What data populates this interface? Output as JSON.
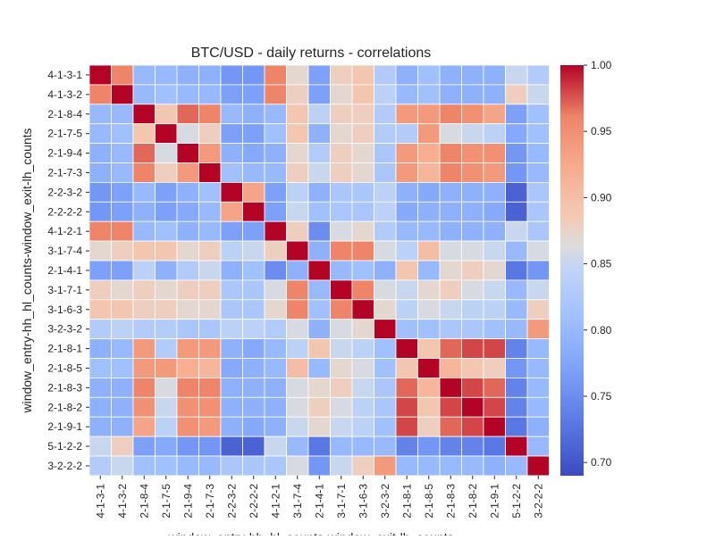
{
  "chart_data": {
    "type": "heatmap",
    "title": "BTC/USD - daily returns - correlations",
    "xlabel": "window_entry-hh_hl_counts-window_exit-lh_counts",
    "ylabel": "window_entry-hh_hl_counts-window_exit-lh_counts",
    "labels": [
      "4-1-3-1",
      "4-1-3-2",
      "2-1-8-4",
      "2-1-7-5",
      "2-1-9-4",
      "2-1-7-3",
      "2-2-3-2",
      "2-2-2-2",
      "4-1-2-1",
      "3-1-7-4",
      "2-1-4-1",
      "3-1-7-1",
      "3-1-6-3",
      "3-2-3-2",
      "2-1-8-1",
      "2-1-8-5",
      "2-1-8-3",
      "2-1-8-2",
      "2-1-9-1",
      "5-1-2-2",
      "3-2-2-2"
    ],
    "vmin": 0.69,
    "vmax": 1.0,
    "colormap": "coolwarm",
    "colorbar_ticks": [
      "0.70",
      "0.75",
      "0.80",
      "0.85",
      "0.90",
      "0.95",
      "1.00"
    ],
    "grid": "white cell borders",
    "matrix": [
      [
        1.0,
        0.96,
        0.8,
        0.8,
        0.79,
        0.79,
        0.76,
        0.76,
        0.96,
        0.87,
        0.77,
        0.88,
        0.89,
        0.83,
        0.79,
        0.81,
        0.79,
        0.79,
        0.79,
        0.85,
        0.83
      ],
      [
        0.96,
        1.0,
        0.8,
        0.81,
        0.8,
        0.8,
        0.77,
        0.77,
        0.96,
        0.88,
        0.77,
        0.87,
        0.89,
        0.84,
        0.8,
        0.81,
        0.79,
        0.79,
        0.79,
        0.88,
        0.85
      ],
      [
        0.8,
        0.8,
        1.0,
        0.89,
        0.97,
        0.96,
        0.8,
        0.79,
        0.8,
        0.89,
        0.84,
        0.88,
        0.88,
        0.83,
        0.94,
        0.94,
        0.96,
        0.95,
        0.93,
        0.77,
        0.81
      ],
      [
        0.8,
        0.81,
        0.89,
        1.0,
        0.86,
        0.88,
        0.77,
        0.77,
        0.81,
        0.89,
        0.79,
        0.87,
        0.88,
        0.83,
        0.83,
        0.94,
        0.86,
        0.85,
        0.84,
        0.78,
        0.81
      ],
      [
        0.79,
        0.8,
        0.97,
        0.86,
        1.0,
        0.94,
        0.79,
        0.78,
        0.79,
        0.87,
        0.83,
        0.88,
        0.87,
        0.82,
        0.94,
        0.92,
        0.96,
        0.95,
        0.95,
        0.76,
        0.8
      ],
      [
        0.79,
        0.8,
        0.96,
        0.88,
        0.94,
        1.0,
        0.81,
        0.8,
        0.8,
        0.88,
        0.85,
        0.88,
        0.87,
        0.82,
        0.94,
        0.91,
        0.96,
        0.95,
        0.94,
        0.76,
        0.8
      ],
      [
        0.76,
        0.77,
        0.8,
        0.77,
        0.79,
        0.81,
        1.0,
        0.93,
        0.77,
        0.84,
        0.79,
        0.82,
        0.82,
        0.84,
        0.79,
        0.78,
        0.79,
        0.79,
        0.79,
        0.71,
        0.82
      ],
      [
        0.76,
        0.77,
        0.79,
        0.77,
        0.78,
        0.8,
        0.93,
        1.0,
        0.77,
        0.85,
        0.81,
        0.82,
        0.82,
        0.84,
        0.78,
        0.79,
        0.79,
        0.79,
        0.78,
        0.71,
        0.82
      ],
      [
        0.96,
        0.96,
        0.8,
        0.81,
        0.79,
        0.8,
        0.77,
        0.77,
        1.0,
        0.88,
        0.75,
        0.86,
        0.87,
        0.83,
        0.8,
        0.8,
        0.79,
        0.79,
        0.79,
        0.85,
        0.82
      ],
      [
        0.87,
        0.88,
        0.89,
        0.89,
        0.87,
        0.88,
        0.84,
        0.85,
        0.88,
        1.0,
        0.79,
        0.96,
        0.96,
        0.86,
        0.84,
        0.9,
        0.86,
        0.86,
        0.85,
        0.8,
        0.86
      ],
      [
        0.77,
        0.77,
        0.84,
        0.79,
        0.83,
        0.85,
        0.79,
        0.81,
        0.75,
        0.79,
        1.0,
        0.8,
        0.81,
        0.79,
        0.89,
        0.8,
        0.87,
        0.88,
        0.87,
        0.73,
        0.76
      ],
      [
        0.88,
        0.87,
        0.88,
        0.87,
        0.88,
        0.88,
        0.82,
        0.82,
        0.86,
        0.96,
        0.8,
        1.0,
        0.96,
        0.86,
        0.85,
        0.87,
        0.88,
        0.86,
        0.85,
        0.8,
        0.85
      ],
      [
        0.89,
        0.89,
        0.88,
        0.88,
        0.87,
        0.87,
        0.82,
        0.82,
        0.87,
        0.96,
        0.81,
        0.96,
        1.0,
        0.87,
        0.84,
        0.86,
        0.85,
        0.84,
        0.84,
        0.8,
        0.88
      ],
      [
        0.83,
        0.84,
        0.83,
        0.83,
        0.82,
        0.82,
        0.84,
        0.84,
        0.83,
        0.86,
        0.79,
        0.86,
        0.87,
        1.0,
        0.81,
        0.81,
        0.82,
        0.82,
        0.81,
        0.8,
        0.94
      ],
      [
        0.79,
        0.8,
        0.94,
        0.83,
        0.94,
        0.94,
        0.79,
        0.78,
        0.8,
        0.84,
        0.89,
        0.85,
        0.84,
        0.81,
        1.0,
        0.89,
        0.97,
        0.98,
        0.98,
        0.74,
        0.8
      ],
      [
        0.81,
        0.81,
        0.94,
        0.94,
        0.92,
        0.91,
        0.78,
        0.79,
        0.8,
        0.9,
        0.8,
        0.87,
        0.86,
        0.81,
        0.89,
        1.0,
        0.91,
        0.89,
        0.88,
        0.76,
        0.8
      ],
      [
        0.79,
        0.79,
        0.96,
        0.86,
        0.96,
        0.96,
        0.79,
        0.79,
        0.79,
        0.86,
        0.87,
        0.88,
        0.85,
        0.82,
        0.97,
        0.91,
        1.0,
        0.98,
        0.97,
        0.74,
        0.8
      ],
      [
        0.79,
        0.79,
        0.95,
        0.85,
        0.95,
        0.95,
        0.79,
        0.79,
        0.79,
        0.86,
        0.88,
        0.86,
        0.84,
        0.82,
        0.98,
        0.89,
        0.98,
        1.0,
        0.98,
        0.74,
        0.8
      ],
      [
        0.79,
        0.79,
        0.93,
        0.84,
        0.95,
        0.94,
        0.79,
        0.78,
        0.79,
        0.85,
        0.87,
        0.85,
        0.84,
        0.81,
        0.98,
        0.88,
        0.97,
        0.98,
        1.0,
        0.73,
        0.79
      ],
      [
        0.85,
        0.88,
        0.77,
        0.78,
        0.76,
        0.76,
        0.71,
        0.71,
        0.85,
        0.8,
        0.73,
        0.8,
        0.8,
        0.8,
        0.74,
        0.76,
        0.74,
        0.74,
        0.73,
        1.0,
        0.8
      ],
      [
        0.83,
        0.85,
        0.81,
        0.81,
        0.8,
        0.8,
        0.82,
        0.82,
        0.82,
        0.86,
        0.76,
        0.85,
        0.88,
        0.94,
        0.8,
        0.8,
        0.8,
        0.8,
        0.79,
        0.8,
        1.0
      ]
    ]
  }
}
